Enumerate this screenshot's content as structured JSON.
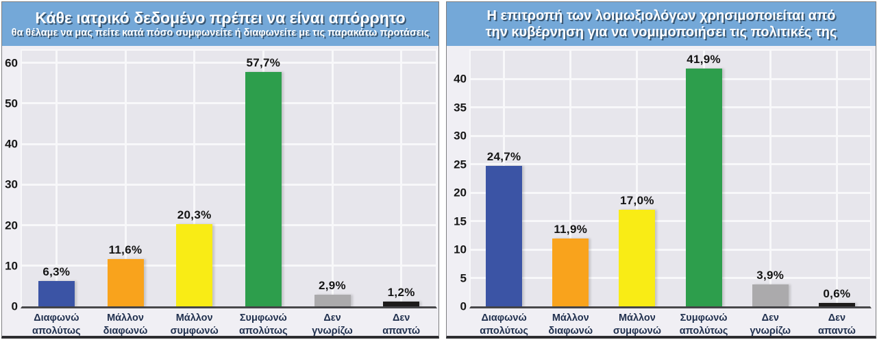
{
  "colors": {
    "title_band": "#74a8d8",
    "panel_bg": "#f0eff4",
    "plot_bg": "#e7e6ec",
    "gridline": "#f8f8fa",
    "axis_line": "#47474a",
    "value_label_text": "#141414",
    "category_label_text": "#20304e",
    "title_text": "#ffffff"
  },
  "chart_data": [
    {
      "type": "bar",
      "title": "Κάθε ιατρικό δεδομένο πρέπει να είναι απόρρητο",
      "subtitle": "θα θέλαμε να μας πείτε κατά πόσο συμφωνείτε ή διαφωνείτε με τις παρακάτω προτάσεις",
      "categories": [
        [
          "Διαφωνώ",
          "απολύτως"
        ],
        [
          "Μάλλον",
          "διαφωνώ"
        ],
        [
          "Μάλλον",
          "συμφωνώ"
        ],
        [
          "Συμφωνώ",
          "απολύτως"
        ],
        [
          "Δεν",
          "γνωρίζω"
        ],
        [
          "Δεν",
          "απαντώ"
        ]
      ],
      "values": [
        6.3,
        11.6,
        20.3,
        57.7,
        2.9,
        1.2
      ],
      "value_labels": [
        "6,3%",
        "11,6%",
        "20,3%",
        "57,7%",
        "2,9%",
        "1,2%"
      ],
      "bar_colors": [
        "#3b54a5",
        "#f9a31c",
        "#f9ec15",
        "#2d9e4c",
        "#abaaac",
        "#1d1b1b"
      ],
      "yticks": [
        0,
        10,
        20,
        30,
        40,
        50,
        60
      ],
      "ylim": [
        0,
        63
      ],
      "xlabel": "",
      "ylabel": "",
      "grid": true,
      "legend": false
    },
    {
      "type": "bar",
      "title": "Η επιτροπή των λοιμωξιολόγων χρησιμοποιείται από",
      "title_line2": "την κυβέρνηση για να νομιμοποιήσει τις πολιτικές της",
      "subtitle": "",
      "categories": [
        [
          "Διαφωνώ",
          "απολύτως"
        ],
        [
          "Μάλλον",
          "διαφωνώ"
        ],
        [
          "Μάλλον",
          "συμφωνώ"
        ],
        [
          "Συμφωνώ",
          "απολύτως"
        ],
        [
          "Δεν",
          "γνωρίζω"
        ],
        [
          "Δεν",
          "απαντώ"
        ]
      ],
      "values": [
        24.7,
        11.9,
        17.0,
        41.9,
        3.9,
        0.6
      ],
      "value_labels": [
        "24,7%",
        "11,9%",
        "17,0%",
        "41,9%",
        "3,9%",
        "0,6%"
      ],
      "bar_colors": [
        "#3b54a5",
        "#f9a31c",
        "#f9ec15",
        "#2d9e4c",
        "#abaaac",
        "#1d1b1b"
      ],
      "yticks": [
        0,
        5,
        10,
        15,
        20,
        25,
        30,
        35,
        40
      ],
      "ylim": [
        0,
        45
      ],
      "xlabel": "",
      "ylabel": "",
      "grid": true,
      "legend": false
    }
  ]
}
